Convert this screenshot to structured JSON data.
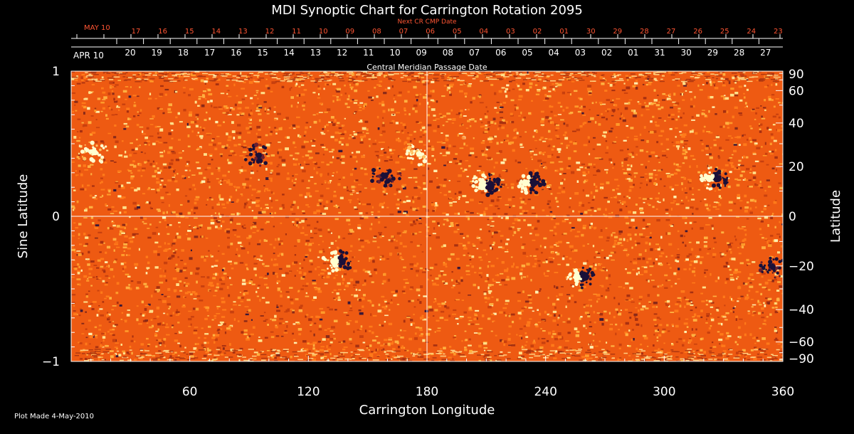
{
  "chart_data": {
    "type": "heatmap",
    "title": "MDI Synoptic Chart for Carrington Rotation 2095",
    "xlabel": "Carrington Longitude",
    "ylabel_left": "Sine Latitude",
    "ylabel_right": "Latitude",
    "xlim": [
      0,
      360
    ],
    "ylim": [
      -1,
      1
    ],
    "x_ticks": [
      60,
      120,
      180,
      240,
      300,
      360
    ],
    "y_ticks_left": [
      -1,
      0,
      1
    ],
    "y_ticks_right": [
      90,
      60,
      40,
      20,
      0,
      -20,
      -40,
      -60,
      -90
    ],
    "crosshair": {
      "longitude": 180,
      "sine_latitude": 0
    },
    "top_axis_next_label": "Next CR CMP Date",
    "top_axis_next_start": "MAY 10",
    "top_axis_next_dates": [
      "17",
      "16",
      "15",
      "14",
      "13",
      "12",
      "11",
      "10",
      "09",
      "08",
      "07",
      "06",
      "05",
      "04",
      "03",
      "02",
      "01",
      "30",
      "29",
      "28",
      "27",
      "26",
      "25",
      "24",
      "23"
    ],
    "top_axis_cmp_label": "Central Meridian Passage Date",
    "top_axis_cmp_start": "APR 10",
    "top_axis_cmp_dates": [
      "20",
      "19",
      "18",
      "17",
      "16",
      "15",
      "14",
      "13",
      "12",
      "11",
      "10",
      "09",
      "08",
      "07",
      "06",
      "05",
      "04",
      "03",
      "02",
      "01",
      "31",
      "30",
      "29",
      "28",
      "27"
    ],
    "background_color": "#ee5a12",
    "positive_polarity_color": "#ffffd0",
    "negative_polarity_color": "#1a1038",
    "active_regions": [
      {
        "lon": 325,
        "sinlat": 0.26,
        "polarity": "bipolar"
      },
      {
        "lon": 258,
        "sinlat": -0.42,
        "polarity": "bipolar"
      },
      {
        "lon": 176,
        "sinlat": 0.43,
        "polarity": "positive"
      },
      {
        "lon": 210,
        "sinlat": 0.22,
        "polarity": "bipolar"
      },
      {
        "lon": 232,
        "sinlat": 0.23,
        "polarity": "bipolar"
      },
      {
        "lon": 95,
        "sinlat": 0.42,
        "polarity": "negative"
      },
      {
        "lon": 159,
        "sinlat": 0.28,
        "polarity": "negative"
      },
      {
        "lon": 135,
        "sinlat": -0.31,
        "polarity": "bipolar"
      },
      {
        "lon": 355,
        "sinlat": -0.35,
        "polarity": "negative"
      },
      {
        "lon": 12,
        "sinlat": 0.44,
        "polarity": "positive"
      }
    ]
  },
  "footer": {
    "plot_made": "Plot Made  4-May-2010"
  }
}
